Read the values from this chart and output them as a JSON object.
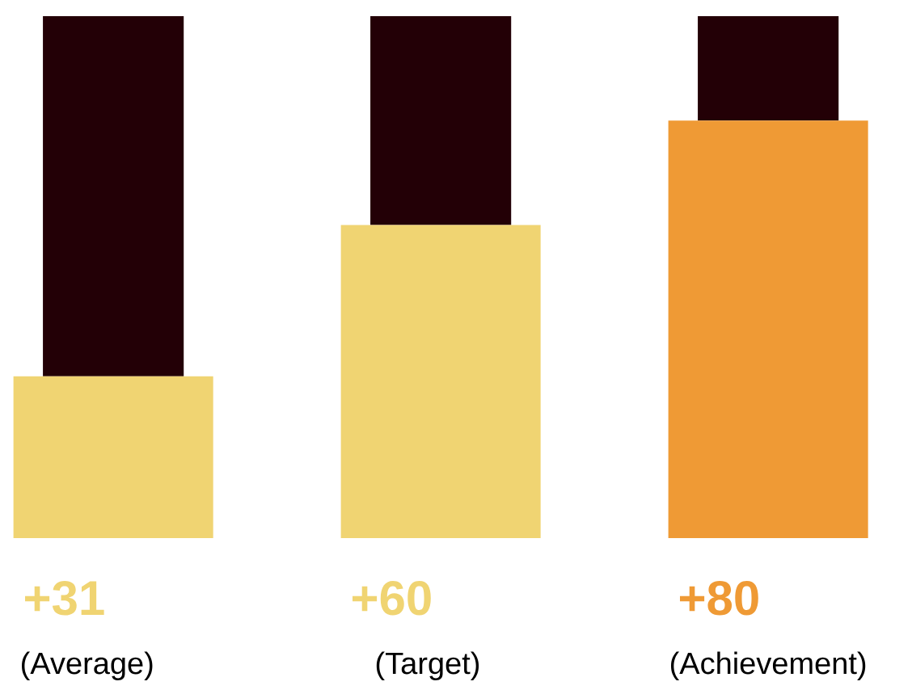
{
  "chart_data": {
    "type": "bar",
    "stacked": true,
    "categories": [
      "(Average)",
      "(Target)",
      "(Achievement)"
    ],
    "series": [
      {
        "colors": [
          "#f0d472",
          "#f0d472",
          "#ef9a35"
        ],
        "values": [
          31,
          60,
          80
        ],
        "value_labels": [
          "+31",
          "+60",
          "+80"
        ]
      },
      {
        "color": "#230006",
        "values": [
          69,
          40,
          20
        ]
      }
    ]
  }
}
